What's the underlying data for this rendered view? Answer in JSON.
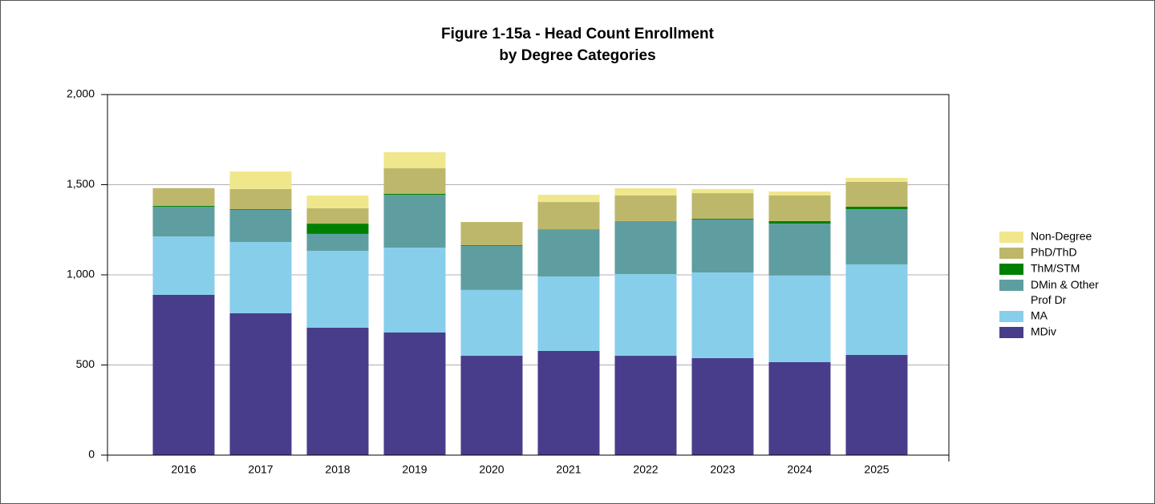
{
  "chart_data": {
    "type": "stacked_bar",
    "title_lines": [
      "Figure 1-15a - Head Count Enrollment",
      "by Degree Categories"
    ],
    "categories": [
      "2016",
      "2017",
      "2018",
      "2019",
      "2020",
      "2021",
      "2022",
      "2023",
      "2024",
      "2025"
    ],
    "series": [
      {
        "name": "MDiv",
        "color": "#483d8b",
        "values": [
          889,
          787,
          707,
          680,
          551,
          578,
          551,
          538,
          516,
          556
        ]
      },
      {
        "name": "MA",
        "color": "#87ceeb",
        "values": [
          324,
          395,
          426,
          471,
          365,
          413,
          453,
          475,
          480,
          502
        ]
      },
      {
        "name": "DMin & Other Prof Dr",
        "color": "#5f9ea0",
        "values": [
          165,
          178,
          94,
          293,
          244,
          262,
          294,
          294,
          288,
          306
        ]
      },
      {
        "name": "ThM/STM",
        "color": "#008000",
        "values": [
          5,
          4,
          57,
          5,
          4,
          0,
          0,
          4,
          14,
          14
        ]
      },
      {
        "name": "PhD/ThD",
        "color": "#bdb76b",
        "values": [
          98,
          112,
          85,
          142,
          129,
          151,
          142,
          142,
          142,
          138
        ]
      },
      {
        "name": "Non-Degree",
        "color": "#f0e68c",
        "values": [
          0,
          97,
          71,
          89,
          0,
          40,
          40,
          23,
          22,
          22
        ]
      }
    ],
    "ylim": [
      0,
      2000
    ],
    "yticks": [
      0,
      500,
      {
        "value": 1000,
        "label": "1,000"
      },
      {
        "value": 1500,
        "label": "1,500"
      },
      {
        "value": 2000,
        "label": "2,000"
      }
    ],
    "grid": true,
    "legend": "right"
  }
}
